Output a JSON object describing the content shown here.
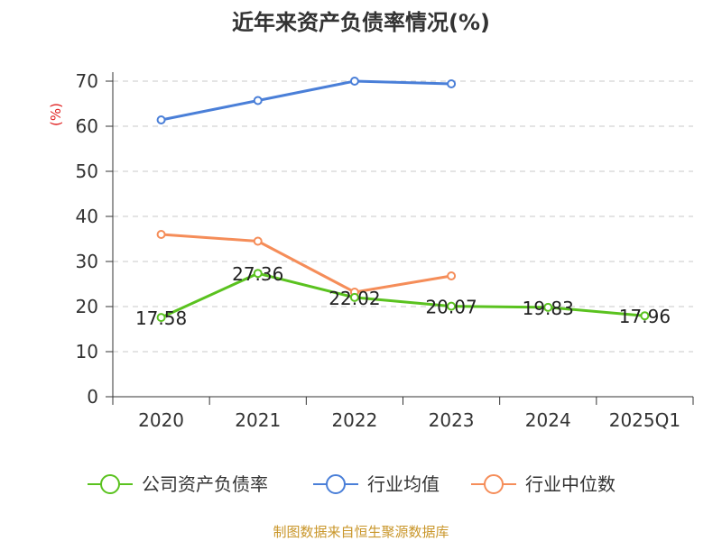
{
  "chart_data": {
    "type": "line",
    "title": "近年来资产负债率情况(%)",
    "unit": "(%)",
    "categories": [
      "2020",
      "2021",
      "2022",
      "2023",
      "2024",
      "2025Q1"
    ],
    "ylim": [
      0,
      70
    ],
    "yticks": [
      0,
      10,
      20,
      30,
      40,
      50,
      60,
      70
    ],
    "grid": true,
    "legend_position": "bottom",
    "series": [
      {
        "name": "公司资产负债率",
        "color": "#5ac21f",
        "values": [
          17.58,
          27.36,
          22.02,
          20.07,
          19.83,
          17.96
        ],
        "labels": [
          "17.58",
          "27.36",
          "22.02",
          "20.07",
          "19.83",
          "17.96"
        ]
      },
      {
        "name": "行业均值",
        "color": "#4a7fd8",
        "values": [
          61.4,
          65.7,
          70.0,
          69.4,
          null,
          null
        ]
      },
      {
        "name": "行业中位数",
        "color": "#f58d59",
        "values": [
          36.0,
          34.5,
          23.2,
          26.8,
          null,
          null
        ]
      }
    ],
    "source": "制图数据来自恒生聚源数据库"
  }
}
